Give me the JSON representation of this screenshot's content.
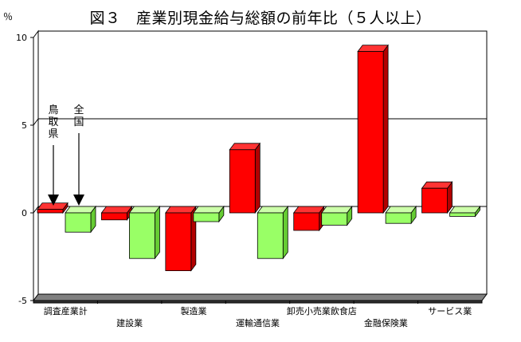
{
  "chart_data": {
    "type": "bar",
    "title": "図３　産業別現金給与総額の前年比（５人以上）",
    "unit": "％",
    "ylim": [
      -5,
      10
    ],
    "yticks": [
      {
        "label": "10",
        "value": 10
      },
      {
        "label": "5",
        "value": 5
      },
      {
        "label": "0",
        "value": 0
      },
      {
        "label": "-5",
        "value": -5
      }
    ],
    "categories": [
      "調査産業計",
      "建設業",
      "製造業",
      "運輸通信業",
      "卸売小売業飲食店",
      "金融保険業",
      "サービス業"
    ],
    "series": [
      {
        "name": "鳥取県",
        "color": "#ff0000",
        "values": [
          0.2,
          -0.4,
          -3.3,
          3.6,
          -1.0,
          9.2,
          1.4
        ]
      },
      {
        "name": "全国",
        "color": "#99ff66",
        "values": [
          -1.1,
          -2.6,
          -0.5,
          -2.6,
          -0.7,
          -0.6,
          -0.2
        ]
      }
    ],
    "grid": "horizontal line at 5",
    "annotations": [
      {
        "text": "鳥取県",
        "target": "調査産業計"
      },
      {
        "text": "全国",
        "target": "調査産業計"
      }
    ]
  }
}
